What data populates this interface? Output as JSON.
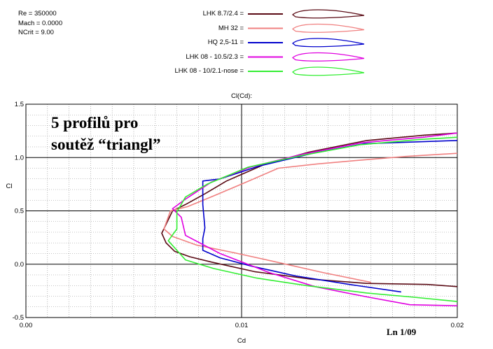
{
  "params": {
    "re": "Re = 350000",
    "mach": "Mach = 0.0000",
    "ncrit": "NCrit = 9.00"
  },
  "caption": {
    "line1": "5 profilů pro",
    "line2": "soutěž “triangl”"
  },
  "ln_label": "Ln 1/09",
  "chart_data": {
    "type": "line",
    "title": "Cl(Cd):",
    "xlabel": "Cd",
    "ylabel": "Cl",
    "xlim": [
      0.0,
      0.02
    ],
    "ylim": [
      -0.5,
      1.5
    ],
    "x_ticks": [
      "0.00",
      "0.01",
      "0.02"
    ],
    "y_ticks": [
      "1.5",
      "1.0",
      "0.5",
      "0.0",
      "-0.5"
    ],
    "grid": true,
    "legend_position": "top-center",
    "series": [
      {
        "name": "LHK 8.7/2.4 =",
        "color": "#5a0a14",
        "x": [
          0.02,
          0.0185,
          0.0158,
          0.0131,
          0.011,
          0.0093,
          0.0083,
          0.0074,
          0.0068,
          0.0063,
          0.0065,
          0.0069,
          0.0076,
          0.0086,
          0.0106,
          0.0132,
          0.0158,
          0.0186,
          0.02
        ],
        "y": [
          1.23,
          1.21,
          1.16,
          1.05,
          0.93,
          0.78,
          0.66,
          0.56,
          0.5,
          0.29,
          0.2,
          0.12,
          0.07,
          0.02,
          -0.07,
          -0.14,
          -0.18,
          -0.19,
          -0.21
        ]
      },
      {
        "name": "MH 32 =",
        "color": "#f08080",
        "x": [
          0.02,
          0.0176,
          0.0152,
          0.0135,
          0.0117,
          0.0101,
          0.0087,
          0.0075,
          0.0067,
          0.0064,
          0.0068,
          0.0079,
          0.0096,
          0.0114,
          0.0138,
          0.016
        ],
        "y": [
          1.04,
          1.01,
          0.97,
          0.94,
          0.9,
          0.76,
          0.64,
          0.54,
          0.5,
          0.33,
          0.26,
          0.18,
          0.11,
          0.03,
          -0.08,
          -0.17
        ]
      },
      {
        "name": "HQ 2,5-11 =",
        "color": "#0000cc",
        "x": [
          0.02,
          0.0185,
          0.0157,
          0.0133,
          0.0108,
          0.009,
          0.0082,
          0.0082,
          0.0083,
          0.0082,
          0.0082,
          0.009,
          0.0105,
          0.0125,
          0.015,
          0.0174
        ],
        "y": [
          1.16,
          1.15,
          1.13,
          1.04,
          0.92,
          0.8,
          0.78,
          0.56,
          0.34,
          0.24,
          0.13,
          0.06,
          -0.02,
          -0.11,
          -0.19,
          -0.26
        ]
      },
      {
        "name": "LHK  08 - 10.5/2.3 =",
        "color": "#e000e0",
        "x": [
          0.02,
          0.0184,
          0.0156,
          0.0128,
          0.0104,
          0.0086,
          0.0074,
          0.0068,
          0.0072,
          0.0074,
          0.009,
          0.0113,
          0.0134,
          0.0159,
          0.0178,
          0.02
        ],
        "y": [
          1.23,
          1.19,
          1.14,
          1.03,
          0.91,
          0.77,
          0.61,
          0.52,
          0.44,
          0.27,
          0.1,
          -0.08,
          -0.21,
          -0.31,
          -0.38,
          -0.39
        ]
      },
      {
        "name": "LHK  08 - 10/2.1-nose =",
        "color": "#33ee33",
        "x": [
          0.02,
          0.0183,
          0.0155,
          0.0128,
          0.0103,
          0.0084,
          0.0074,
          0.007,
          0.007,
          0.0066,
          0.0074,
          0.0087,
          0.0107,
          0.013,
          0.0158,
          0.018,
          0.02
        ],
        "y": [
          1.19,
          1.17,
          1.12,
          1.02,
          0.91,
          0.75,
          0.63,
          0.49,
          0.33,
          0.22,
          0.04,
          -0.04,
          -0.13,
          -0.2,
          -0.27,
          -0.31,
          -0.35
        ]
      }
    ]
  }
}
